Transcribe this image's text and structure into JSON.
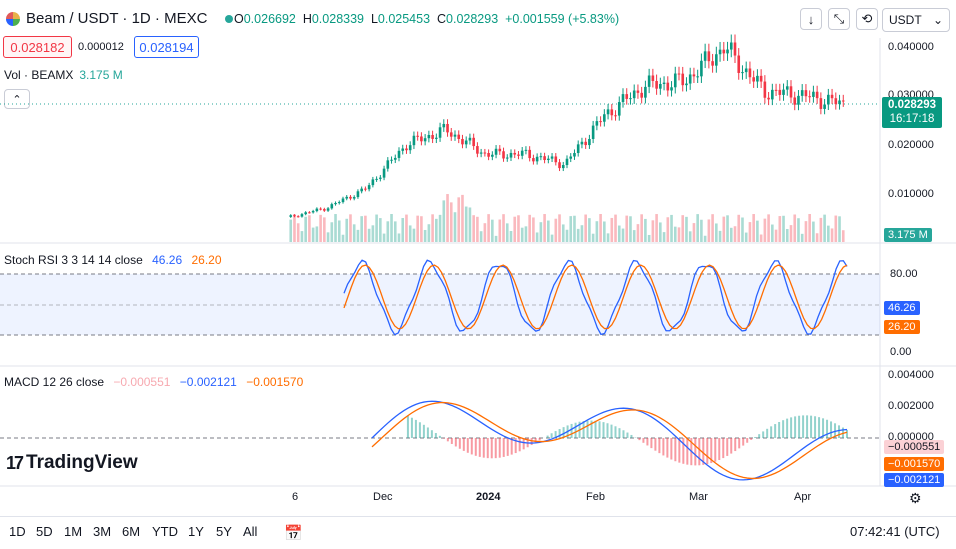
{
  "header": {
    "symbol": "Beam / USDT · 1D · MEXC",
    "ohlc": {
      "o_label": "O",
      "o": "0.026692",
      "h_label": "H",
      "h": "0.028339",
      "l_label": "L",
      "l": "0.025453",
      "c_label": "C",
      "c": "0.028293",
      "change": "+0.001559 (+5.83%)"
    },
    "currency": "USDT",
    "colors": {
      "up": "#089981",
      "down": "#f23645",
      "accent": "#2962ff"
    }
  },
  "trade": {
    "bid": "0.028182",
    "spread": "0.000012",
    "ask": "0.028194"
  },
  "volume": {
    "label": "Vol · BEAMX",
    "value": "3.175 M",
    "axis_tag": "3.175 M"
  },
  "price_axis": {
    "ticks": [
      "0.040000",
      "0.030000",
      "0.020000",
      "0.010000"
    ],
    "last_price": "0.028293",
    "countdown": "16:17:18"
  },
  "stoch": {
    "label": "Stoch RSI 3 3 14 14 close",
    "k": "46.26",
    "d": "26.20",
    "ticks": [
      "80.00",
      "0.00"
    ],
    "k_tag": "46.26",
    "d_tag": "26.20"
  },
  "macd": {
    "label": "MACD 12 26 close",
    "hist": "−0.000551",
    "macd": "−0.002121",
    "signal": "−0.001570",
    "ticks": [
      "0.004000",
      "0.002000",
      "0.000000"
    ],
    "hist_tag": "−0.000551",
    "signal_tag": "−0.001570",
    "macd_tag": "−0.002121"
  },
  "time_axis": {
    "labels": [
      "6",
      "Dec",
      "2024",
      "Feb",
      "Mar",
      "Apr"
    ]
  },
  "brand": "TradingView",
  "ranges": [
    "1D",
    "5D",
    "1M",
    "3M",
    "6M",
    "YTD",
    "1Y",
    "5Y",
    "All"
  ],
  "clock": "07:42:41 (UTC)",
  "chart_data": {
    "type": "line",
    "series": [
      {
        "name": "close",
        "x": [
          "Nov 6",
          "Nov 20",
          "Dec 1",
          "Dec 10",
          "Dec 15",
          "Jan 1",
          "Jan 15",
          "Feb 1",
          "Feb 10",
          "Feb 20",
          "Mar 1",
          "Mar 10",
          "Mar 20",
          "Apr 1",
          "Apr 10"
        ],
        "values": [
          0.005,
          0.007,
          0.011,
          0.02,
          0.023,
          0.018,
          0.018,
          0.016,
          0.026,
          0.032,
          0.033,
          0.04,
          0.031,
          0.03,
          0.028293
        ]
      }
    ],
    "ylim": [
      0,
      0.045
    ]
  }
}
